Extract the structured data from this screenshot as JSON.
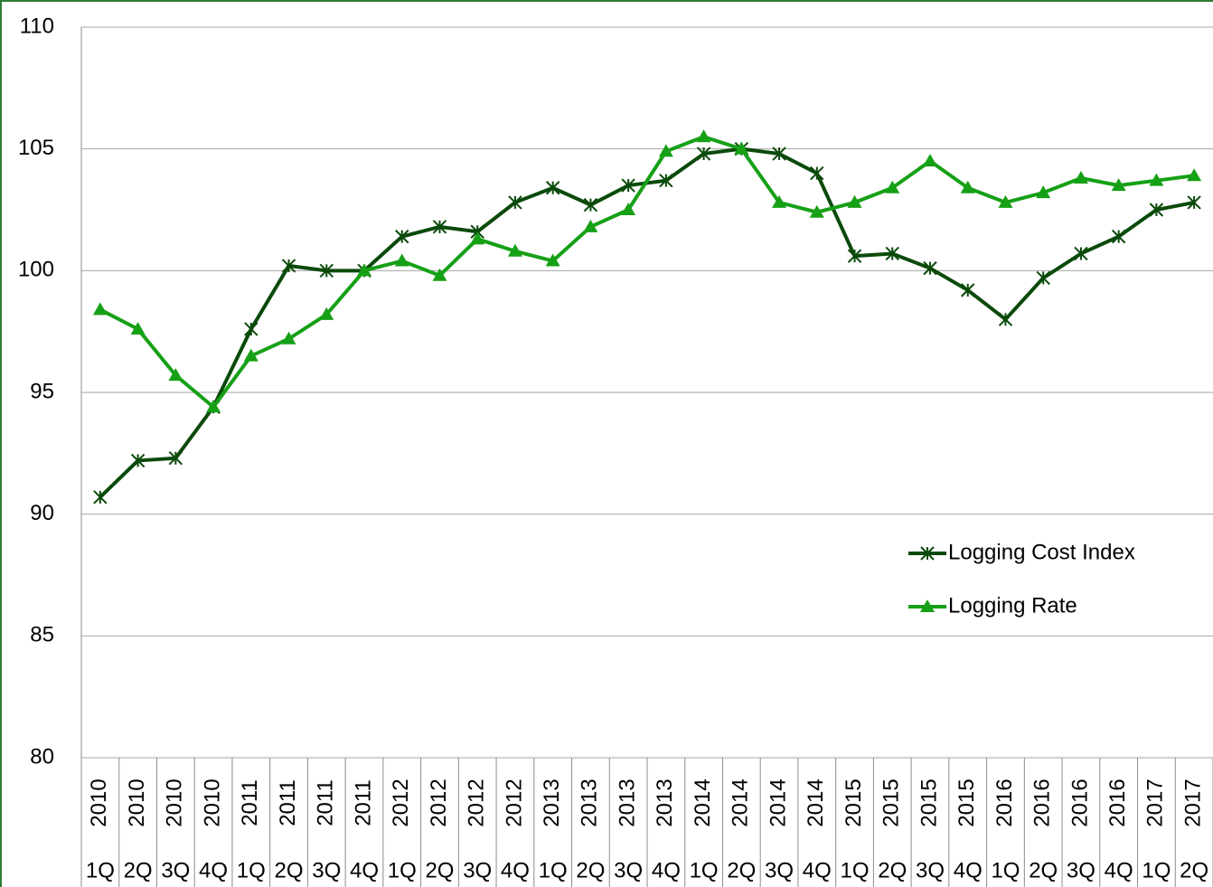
{
  "chart_data": {
    "type": "line",
    "categories": [
      [
        "2010",
        "1Q"
      ],
      [
        "2010",
        "2Q"
      ],
      [
        "2010",
        "3Q"
      ],
      [
        "2010",
        "4Q"
      ],
      [
        "2011",
        "1Q"
      ],
      [
        "2011",
        "2Q"
      ],
      [
        "2011",
        "3Q"
      ],
      [
        "2011",
        "4Q"
      ],
      [
        "2012",
        "1Q"
      ],
      [
        "2012",
        "2Q"
      ],
      [
        "2012",
        "3Q"
      ],
      [
        "2012",
        "4Q"
      ],
      [
        "2013",
        "1Q"
      ],
      [
        "2013",
        "2Q"
      ],
      [
        "2013",
        "3Q"
      ],
      [
        "2013",
        "4Q"
      ],
      [
        "2014",
        "1Q"
      ],
      [
        "2014",
        "2Q"
      ],
      [
        "2014",
        "3Q"
      ],
      [
        "2014",
        "4Q"
      ],
      [
        "2015",
        "1Q"
      ],
      [
        "2015",
        "2Q"
      ],
      [
        "2015",
        "3Q"
      ],
      [
        "2015",
        "4Q"
      ],
      [
        "2016",
        "1Q"
      ],
      [
        "2016",
        "2Q"
      ],
      [
        "2016",
        "3Q"
      ],
      [
        "2016",
        "4Q"
      ],
      [
        "2017",
        "1Q"
      ],
      [
        "2017",
        "2Q"
      ]
    ],
    "series": [
      {
        "name": "Logging Cost Index",
        "color": "#0a4a0a",
        "marker": "star",
        "values": [
          90.7,
          92.2,
          92.3,
          94.4,
          97.6,
          100.2,
          100.0,
          100.0,
          101.4,
          101.8,
          101.6,
          102.8,
          103.4,
          102.7,
          103.5,
          103.7,
          104.8,
          105.0,
          104.8,
          104.0,
          100.6,
          100.7,
          100.1,
          99.2,
          98.0,
          99.7,
          100.7,
          101.4,
          102.5,
          102.8
        ]
      },
      {
        "name": "Logging Rate",
        "color": "#16a016",
        "marker": "triangle",
        "values": [
          98.4,
          97.6,
          95.7,
          94.4,
          96.5,
          97.2,
          98.2,
          100.0,
          100.4,
          99.8,
          101.3,
          100.8,
          100.4,
          101.8,
          102.5,
          104.9,
          105.5,
          105.0,
          102.8,
          102.4,
          102.8,
          103.4,
          104.5,
          103.4,
          102.8,
          103.2,
          103.8,
          103.5,
          103.7,
          103.9
        ]
      }
    ],
    "ylim": [
      80,
      110
    ],
    "yticks": [
      80,
      85,
      90,
      95,
      100,
      105,
      110
    ],
    "grid": true,
    "legend": "right"
  }
}
